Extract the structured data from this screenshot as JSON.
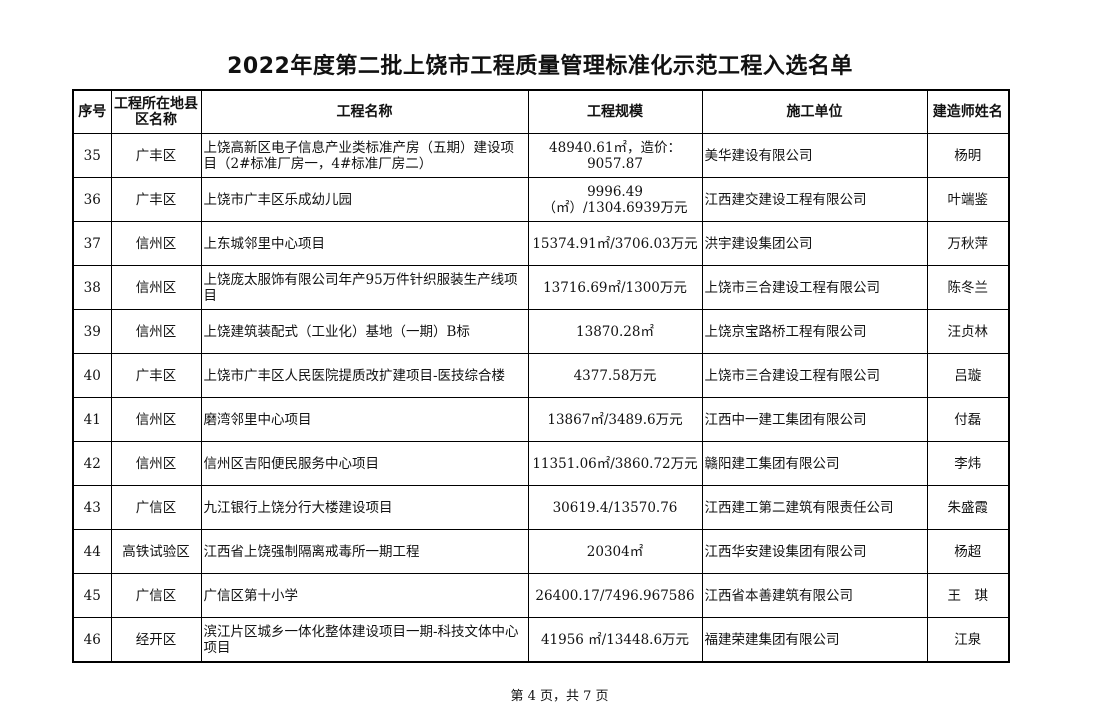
{
  "title": "2022年度第二批上饶市工程质量管理标准化示范工程入选名单",
  "columns": [
    "序号",
    "工程所在地县区名称",
    "工程名称",
    "工程规模",
    "施工单位",
    "建造师姓名"
  ],
  "rows": [
    {
      "no": "35",
      "region": "广丰区",
      "project": "上饶高新区电子信息产业类标准产房（五期）建设项目（2#标准厂房一，4#标准厂房二）",
      "scale": "48940.61㎡，造价：9057.87",
      "company": "美华建设有限公司",
      "builder": "杨明"
    },
    {
      "no": "36",
      "region": "广丰区",
      "project": "上饶市广丰区乐成幼儿园",
      "scale": "9996.49（㎡）/1304.6939万元",
      "company": "江西建交建设工程有限公司",
      "builder": "叶端鉴"
    },
    {
      "no": "37",
      "region": "信州区",
      "project": "上东城邻里中心项目",
      "scale": "15374.91㎡/3706.03万元",
      "company": "洪宇建设集团公司",
      "builder": "万秋萍"
    },
    {
      "no": "38",
      "region": "信州区",
      "project": "上饶庞太服饰有限公司年产95万件针织服装生产线项目",
      "scale": "13716.69㎡/1300万元",
      "company": "上饶市三合建设工程有限公司",
      "builder": "陈冬兰"
    },
    {
      "no": "39",
      "region": "信州区",
      "project": "上饶建筑装配式（工业化）基地（一期）B标",
      "scale": "13870.28㎡",
      "company": "上饶京宝路桥工程有限公司",
      "builder": "汪贞林"
    },
    {
      "no": "40",
      "region": "广丰区",
      "project": "上饶市广丰区人民医院提质改扩建项目-医技综合楼",
      "scale": "4377.58万元",
      "company": "上饶市三合建设工程有限公司",
      "builder": "吕璇"
    },
    {
      "no": "41",
      "region": "信州区",
      "project": "磨湾邻里中心项目",
      "scale": "13867㎡/3489.6万元",
      "company": "江西中一建工集团有限公司",
      "builder": "付磊"
    },
    {
      "no": "42",
      "region": "信州区",
      "project": "信州区吉阳便民服务中心项目",
      "scale": "11351.06㎡/3860.72万元",
      "company": "赣阳建工集团有限公司",
      "builder": "李炜"
    },
    {
      "no": "43",
      "region": "广信区",
      "project": "九江银行上饶分行大楼建设项目",
      "scale": "30619.4/13570.76",
      "company": "江西建工第二建筑有限责任公司",
      "builder": "朱盛霞"
    },
    {
      "no": "44",
      "region": "高铁试验区",
      "project": "江西省上饶强制隔离戒毒所一期工程",
      "scale": "20304㎡",
      "company": "江西华安建设集团有限公司",
      "builder": "杨超"
    },
    {
      "no": "45",
      "region": "广信区",
      "project": "广信区第十小学",
      "scale": "26400.17/7496.967586",
      "company": "江西省本善建筑有限公司",
      "builder": "王　琪"
    },
    {
      "no": "46",
      "region": "经开区",
      "project": "滨江片区城乡一体化整体建设项目一期-科技文体中心项目",
      "scale": "41956 ㎡/13448.6万元",
      "company": "福建荣建集团有限公司",
      "builder": "江泉"
    }
  ],
  "footer": "第 4 页，共 7 页"
}
